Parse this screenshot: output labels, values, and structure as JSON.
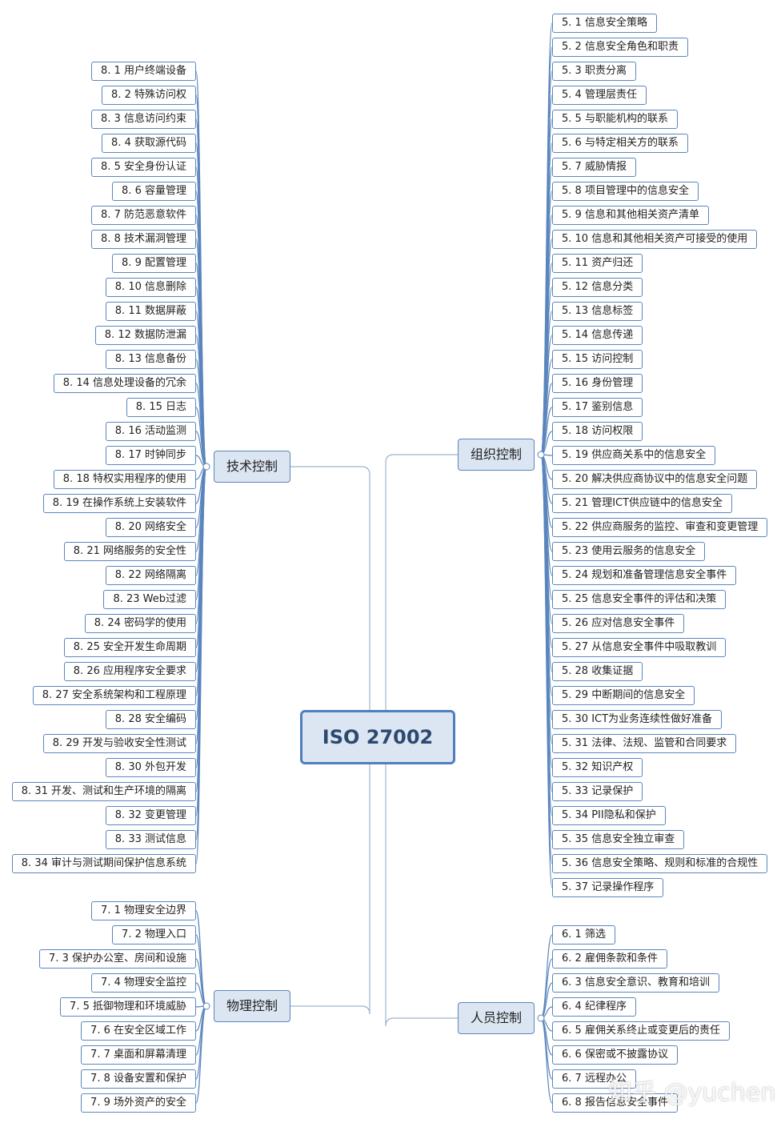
{
  "center": "ISO 27002",
  "branches": [
    {
      "label": "组织控制",
      "items": [
        "5. 1 信息安全策略",
        "5. 2 信息安全角色和职责",
        "5. 3 职责分离",
        "5. 4 管理层责任",
        "5. 5 与职能机构的联系",
        "5. 6 与特定相关方的联系",
        "5. 7 威胁情报",
        "5. 8 项目管理中的信息安全",
        "5. 9 信息和其他相关资产清单",
        "5. 10 信息和其他相关资产可接受的使用",
        "5. 11 资产归还",
        "5. 12 信息分类",
        "5. 13 信息标签",
        "5. 14 信息传递",
        "5. 15 访问控制",
        "5. 16 身份管理",
        "5. 17 鉴别信息",
        "5. 18 访问权限",
        "5. 19 供应商关系中的信息安全",
        "5. 20 解决供应商协议中的信息安全问题",
        "5. 21 管理ICT供应链中的信息安全",
        "5. 22 供应商服务的监控、审查和变更管理",
        "5. 23 使用云服务的信息安全",
        "5. 24 规划和准备管理信息安全事件",
        "5. 25 信息安全事件的评估和决策",
        "5. 26 应对信息安全事件",
        "5. 27 从信息安全事件中吸取教训",
        "5. 28 收集证据",
        "5. 29 中断期间的信息安全",
        "5. 30 ICT为业务连续性做好准备",
        "5. 31 法律、法规、监管和合同要求",
        "5. 32 知识产权",
        "5. 33 记录保护",
        "5. 34 PII隐私和保护",
        "5. 35 信息安全独立审查",
        "5. 36 信息安全策略、规则和标准的合规性",
        "5. 37 记录操作程序"
      ]
    },
    {
      "label": "人员控制",
      "items": [
        "6. 1 筛选",
        "6. 2 雇佣条款和条件",
        "6. 3 信息安全意识、教育和培训",
        "6. 4 纪律程序",
        "6. 5 雇佣关系终止或变更后的责任",
        "6. 6 保密或不披露协议",
        "6. 7 远程办公",
        "6. 8 报告信息安全事件"
      ]
    },
    {
      "label": "技术控制",
      "items": [
        "8. 1 用户终端设备",
        "8. 2 特殊访问权",
        "8. 3 信息访问约束",
        "8. 4 获取源代码",
        "8. 5 安全身份认证",
        "8. 6 容量管理",
        "8. 7 防范恶意软件",
        "8. 8 技术漏洞管理",
        "8. 9 配置管理",
        "8. 10 信息删除",
        "8. 11 数据屏蔽",
        "8. 12 数据防泄漏",
        "8. 13 信息备份",
        "8. 14 信息处理设备的冗余",
        "8. 15 日志",
        "8. 16 活动监测",
        "8. 17 时钟同步",
        "8. 18 特权实用程序的使用",
        "8. 19 在操作系统上安装软件",
        "8. 20 网络安全",
        "8. 21 网络服务的安全性",
        "8. 22 网络隔离",
        "8. 23 Web过滤",
        "8. 24 密码学的使用",
        "8. 25 安全开发生命周期",
        "8. 26 应用程序安全要求",
        "8. 27 安全系统架构和工程原理",
        "8. 28 安全编码",
        "8. 29 开发与验收安全性测试",
        "8. 30 外包开发",
        "8. 31 开发、测试和生产环境的隔离",
        "8. 32 变更管理",
        "8. 33 测试信息",
        "8. 34 审计与测试期间保护信息系统"
      ]
    },
    {
      "label": "物理控制",
      "items": [
        "7. 1 物理安全边界",
        "7. 2 物理入口",
        "7. 3 保护办公室、房间和设施",
        "7. 4 物理安全监控",
        "7. 5 抵御物理和环境威胁",
        "7. 6 在安全区域工作",
        "7. 7 桌面和屏幕清理",
        "7. 8 设备安置和保护",
        "7. 9 场外资产的安全"
      ]
    }
  ],
  "watermark": "知乎 @yuchen"
}
